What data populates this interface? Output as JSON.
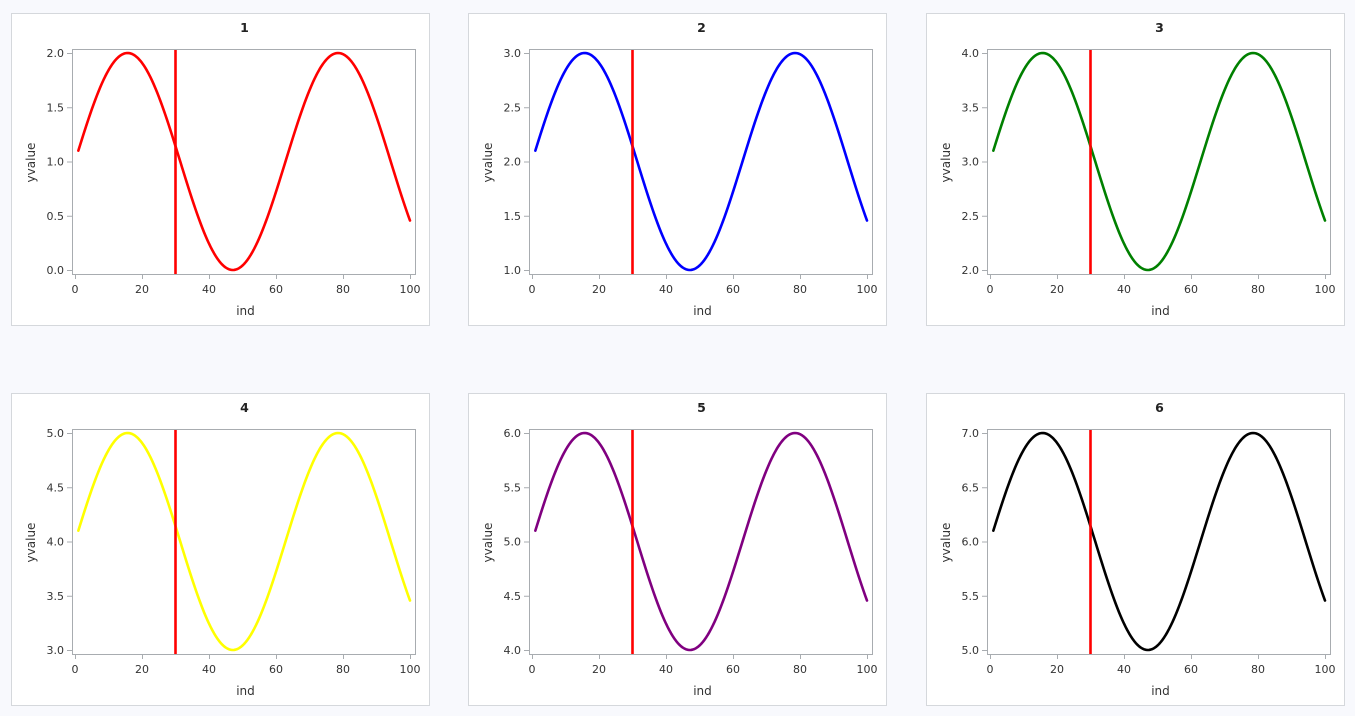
{
  "page": {
    "background": "#f8f9fd"
  },
  "chart_data": [
    {
      "type": "line",
      "title": "1",
      "xlabel": "ind",
      "ylabel": "yvalue",
      "xlim": [
        0,
        100
      ],
      "ylim": [
        0.0,
        2.0
      ],
      "xticks": [
        "0",
        "20",
        "40",
        "60",
        "80",
        "100"
      ],
      "yticks": [
        "0.0",
        "0.5",
        "1.0",
        "1.5",
        "2.0"
      ],
      "series": [
        {
          "name": "yvalue",
          "color": "#ff0000",
          "formula": "1 + sin(ind/10)",
          "x_range": [
            1,
            100
          ],
          "offset": 1
        }
      ],
      "reference_line": {
        "axis": "x",
        "value": 30,
        "color": "#ff0000"
      }
    },
    {
      "type": "line",
      "title": "2",
      "xlabel": "ind",
      "ylabel": "yvalue",
      "xlim": [
        0,
        100
      ],
      "ylim": [
        1.0,
        3.0
      ],
      "xticks": [
        "0",
        "20",
        "40",
        "60",
        "80",
        "100"
      ],
      "yticks": [
        "1.0",
        "1.5",
        "2.0",
        "2.5",
        "3.0"
      ],
      "series": [
        {
          "name": "yvalue",
          "color": "#0000ff",
          "formula": "2 + sin(ind/10)",
          "x_range": [
            1,
            100
          ],
          "offset": 2
        }
      ],
      "reference_line": {
        "axis": "x",
        "value": 30,
        "color": "#ff0000"
      }
    },
    {
      "type": "line",
      "title": "3",
      "xlabel": "ind",
      "ylabel": "yvalue",
      "xlim": [
        0,
        100
      ],
      "ylim": [
        2.0,
        4.0
      ],
      "xticks": [
        "0",
        "20",
        "40",
        "60",
        "80",
        "100"
      ],
      "yticks": [
        "2.0",
        "2.5",
        "3.0",
        "3.5",
        "4.0"
      ],
      "series": [
        {
          "name": "yvalue",
          "color": "#008000",
          "formula": "3 + sin(ind/10)",
          "x_range": [
            1,
            100
          ],
          "offset": 3
        }
      ],
      "reference_line": {
        "axis": "x",
        "value": 30,
        "color": "#ff0000"
      }
    },
    {
      "type": "line",
      "title": "4",
      "xlabel": "ind",
      "ylabel": "yvalue",
      "xlim": [
        0,
        100
      ],
      "ylim": [
        3.0,
        5.0
      ],
      "xticks": [
        "0",
        "20",
        "40",
        "60",
        "80",
        "100"
      ],
      "yticks": [
        "3.0",
        "3.5",
        "4.0",
        "4.5",
        "5.0"
      ],
      "series": [
        {
          "name": "yvalue",
          "color": "#ffff00",
          "formula": "4 + sin(ind/10)",
          "x_range": [
            1,
            100
          ],
          "offset": 4
        }
      ],
      "reference_line": {
        "axis": "x",
        "value": 30,
        "color": "#ff0000"
      }
    },
    {
      "type": "line",
      "title": "5",
      "xlabel": "ind",
      "ylabel": "yvalue",
      "xlim": [
        0,
        100
      ],
      "ylim": [
        4.0,
        6.0
      ],
      "xticks": [
        "0",
        "20",
        "40",
        "60",
        "80",
        "100"
      ],
      "yticks": [
        "4.0",
        "4.5",
        "5.0",
        "5.5",
        "6.0"
      ],
      "series": [
        {
          "name": "yvalue",
          "color": "#800080",
          "formula": "5 + sin(ind/10)",
          "x_range": [
            1,
            100
          ],
          "offset": 5
        }
      ],
      "reference_line": {
        "axis": "x",
        "value": 30,
        "color": "#ff0000"
      }
    },
    {
      "type": "line",
      "title": "6",
      "xlabel": "ind",
      "ylabel": "yvalue",
      "xlim": [
        0,
        100
      ],
      "ylim": [
        5.0,
        7.0
      ],
      "xticks": [
        "0",
        "20",
        "40",
        "60",
        "80",
        "100"
      ],
      "yticks": [
        "5.0",
        "5.5",
        "6.0",
        "6.5",
        "7.0"
      ],
      "series": [
        {
          "name": "yvalue",
          "color": "#000000",
          "formula": "6 + sin(ind/10)",
          "x_range": [
            1,
            100
          ],
          "offset": 6
        }
      ],
      "reference_line": {
        "axis": "x",
        "value": 30,
        "color": "#ff0000"
      }
    }
  ]
}
